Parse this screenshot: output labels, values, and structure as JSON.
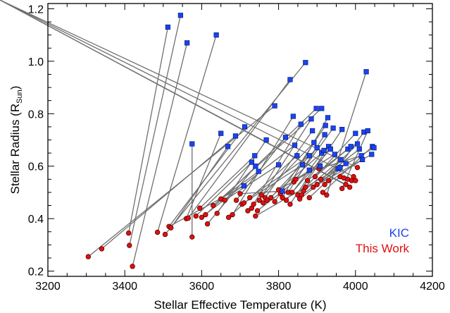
{
  "chart_data": {
    "type": "scatter",
    "xlabel": "Stellar Effective Temperature (K)",
    "ylabel": {
      "main": "Stellar Radius (R",
      "sub": "Sun",
      "close": ")"
    },
    "xlim": [
      3200,
      4200
    ],
    "ylim": [
      0.18,
      1.22
    ],
    "xticks": [
      3200,
      3400,
      3600,
      3800,
      4000,
      4200
    ],
    "yticks": [
      0.2,
      0.4,
      0.6,
      0.8,
      1.0,
      1.2
    ],
    "ytick_labels": [
      "0.2",
      "0.4",
      "0.6",
      "0.8",
      "1.0",
      "1.2"
    ],
    "legend": {
      "placement": "bottom-right"
    },
    "colors": {
      "kic": "#1a44f0",
      "this_work": "#e01010",
      "connector": "#707070"
    },
    "series": [
      {
        "name": "KIC",
        "marker": "square",
        "x": [
          3512,
          3545,
          3562,
          3638,
          3575,
          3650,
          3668,
          3688,
          3710,
          3712,
          3730,
          3738,
          3740,
          3748,
          3768,
          3790,
          3800,
          3810,
          3818,
          3830,
          3838,
          3842,
          3848,
          3858,
          3862,
          3870,
          3880,
          3880,
          3885,
          3888,
          3892,
          3898,
          3900,
          3908,
          3912,
          3912,
          3918,
          3920,
          3922,
          3928,
          3930,
          3935,
          3942,
          3946,
          3955,
          3960,
          3962,
          3965,
          3975,
          3980,
          3988,
          4000,
          4005,
          4010,
          4015,
          4018,
          4022,
          4028,
          4032,
          4042,
          4044,
          4048
        ],
        "y": [
          1.13,
          1.175,
          1.07,
          1.1,
          0.685,
          0.725,
          0.675,
          0.715,
          0.525,
          0.75,
          0.615,
          0.64,
          0.6,
          0.58,
          0.7,
          0.83,
          0.605,
          0.505,
          0.71,
          0.93,
          0.79,
          0.68,
          0.64,
          0.76,
          0.605,
          0.995,
          0.585,
          0.64,
          0.78,
          0.735,
          0.69,
          0.82,
          0.67,
          0.6,
          0.65,
          0.82,
          0.66,
          0.72,
          0.755,
          0.785,
          0.675,
          0.665,
          0.745,
          0.645,
          0.59,
          0.595,
          0.625,
          0.74,
          0.61,
          0.665,
          0.675,
          0.725,
          0.685,
          0.665,
          0.64,
          0.625,
          0.73,
          0.96,
          0.735,
          0.645,
          0.675,
          0.67
        ]
      },
      {
        "name": "This Work",
        "marker": "circle",
        "x": [
          3305,
          3340,
          3410,
          3412,
          3420,
          3485,
          3505,
          3515,
          3520,
          3560,
          3565,
          3575,
          3585,
          3595,
          3600,
          3610,
          3615,
          3630,
          3640,
          3650,
          3660,
          3670,
          3680,
          3690,
          3700,
          3705,
          3710,
          3720,
          3725,
          3730,
          3735,
          3740,
          3745,
          3750,
          3755,
          3760,
          3765,
          3770,
          3780,
          3790,
          3800,
          3805,
          3810,
          3820,
          3825,
          3830,
          3835,
          3840,
          3845,
          3850,
          3855,
          3860,
          3865,
          3870,
          3875,
          3880,
          3890,
          3895,
          3900,
          3905,
          3910,
          3915,
          3920,
          3925,
          3930,
          3960,
          3965,
          3970,
          3975,
          3980,
          3985,
          3990,
          3995,
          4000,
          4005
        ],
        "y": [
          0.255,
          0.285,
          0.345,
          0.298,
          0.218,
          0.348,
          0.34,
          0.37,
          0.365,
          0.4,
          0.402,
          0.33,
          0.41,
          0.44,
          0.405,
          0.415,
          0.38,
          0.45,
          0.42,
          0.475,
          0.47,
          0.405,
          0.415,
          0.47,
          0.495,
          0.455,
          0.46,
          0.43,
          0.48,
          0.44,
          0.455,
          0.41,
          0.43,
          0.47,
          0.49,
          0.46,
          0.48,
          0.47,
          0.48,
          0.465,
          0.51,
          0.495,
          0.48,
          0.47,
          0.5,
          0.455,
          0.5,
          0.54,
          0.55,
          0.49,
          0.475,
          0.49,
          0.505,
          0.52,
          0.545,
          0.48,
          0.52,
          0.56,
          0.53,
          0.59,
          0.55,
          0.5,
          0.53,
          0.49,
          0.545,
          0.56,
          0.515,
          0.555,
          0.53,
          0.55,
          0.52,
          0.545,
          0.56,
          0.545,
          0.595
        ]
      }
    ],
    "connections": [
      [
        0,
        2
      ],
      [
        1,
        3
      ],
      [
        2,
        4
      ],
      [
        3,
        5
      ],
      [
        4,
        11
      ],
      [
        5,
        9
      ],
      [
        6,
        8
      ],
      [
        7,
        1
      ],
      [
        8,
        7
      ],
      [
        9,
        7
      ],
      [
        10,
        12
      ],
      [
        11,
        13
      ],
      [
        12,
        16
      ],
      [
        13,
        19
      ],
      [
        14,
        18
      ],
      [
        15,
        0
      ],
      [
        16,
        20
      ],
      [
        17,
        24
      ],
      [
        18,
        23
      ],
      [
        19,
        10
      ],
      [
        20,
        22
      ],
      [
        21,
        14
      ],
      [
        22,
        21
      ],
      [
        23,
        30
      ],
      [
        24,
        26
      ],
      [
        25,
        6
      ],
      [
        26,
        32
      ],
      [
        27,
        28
      ],
      [
        28,
        33
      ],
      [
        29,
        36
      ],
      [
        30,
        27
      ],
      [
        31,
        15
      ],
      [
        32,
        38
      ],
      [
        33,
        40
      ],
      [
        34,
        37
      ],
      [
        35,
        17
      ],
      [
        36,
        43
      ],
      [
        37,
        44
      ],
      [
        38,
        39
      ],
      [
        39,
        42
      ],
      [
        40,
        45
      ],
      [
        41,
        46
      ],
      [
        42,
        47
      ],
      [
        43,
        48
      ],
      [
        44,
        50
      ],
      [
        45,
        51
      ],
      [
        46,
        52
      ],
      [
        47,
        49
      ],
      [
        48,
        55
      ],
      [
        49,
        54
      ],
      [
        50,
        57
      ],
      [
        51,
        53
      ],
      [
        52,
        58
      ],
      [
        53,
        60
      ],
      [
        54,
        59
      ],
      [
        55,
        62
      ],
      [
        56,
        64
      ],
      [
        57,
        63
      ],
      [
        58,
        66
      ],
      [
        59,
        56
      ],
      [
        60,
        61
      ],
      [
        61,
        31
      ],
      [
        62,
        68
      ],
      [
        63,
        70
      ],
      [
        64,
        72
      ],
      [
        65,
        74
      ]
    ]
  },
  "legend_labels": {
    "kic": "KIC",
    "this_work": "This Work"
  }
}
